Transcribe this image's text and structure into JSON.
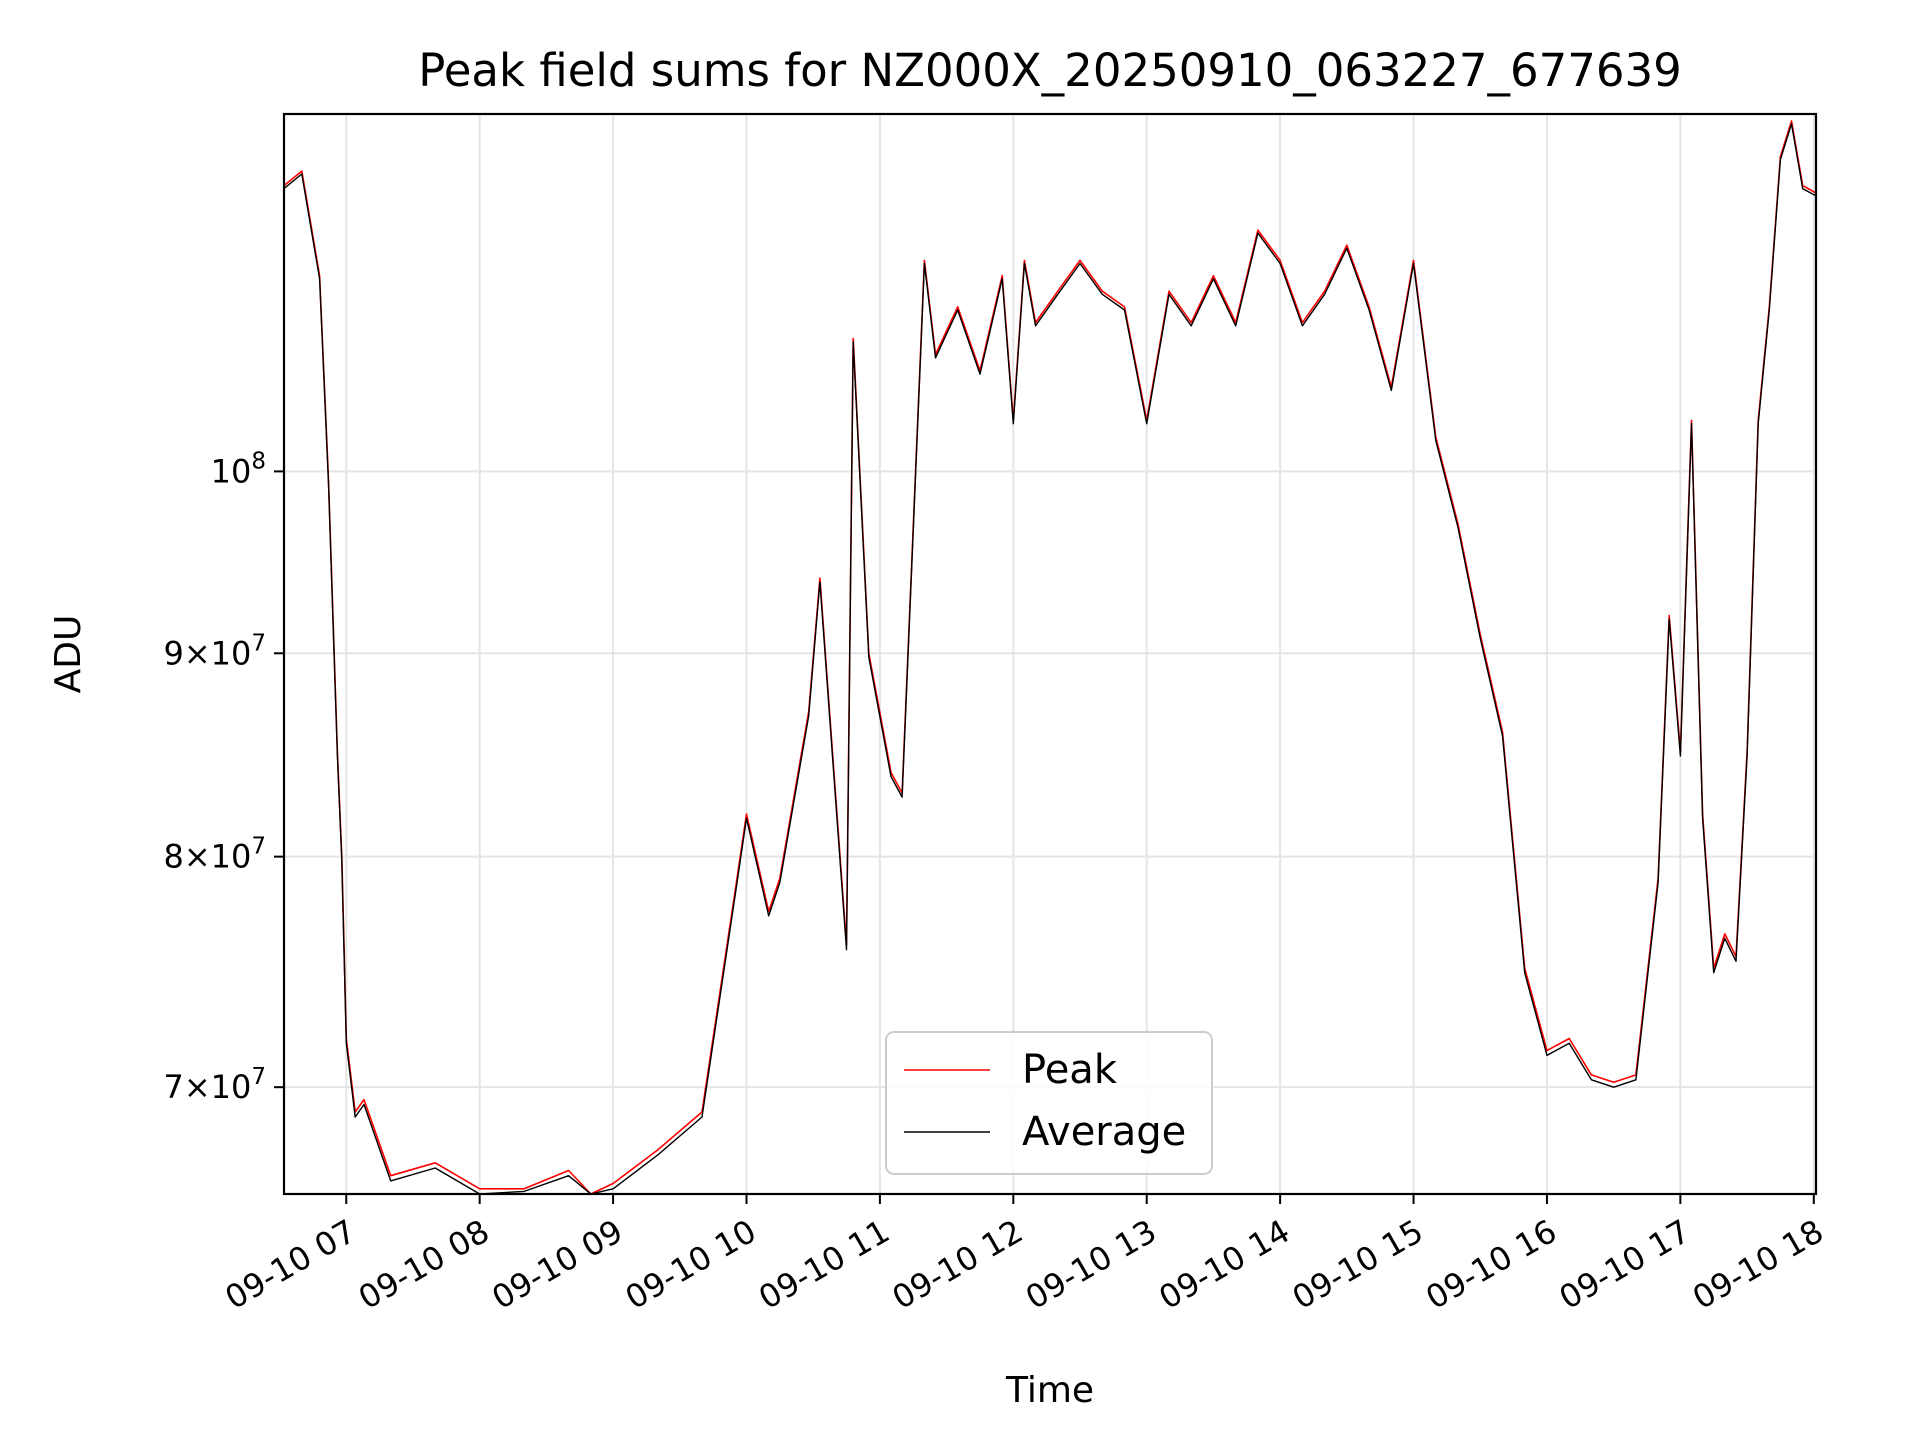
{
  "chart_data": {
    "type": "line",
    "title": "Peak field sums for NZ000X_20250910_063227_677639",
    "xlabel": "Time",
    "ylabel": "ADU",
    "y_scale": "log",
    "xlim": [
      "2025-09-10 06:32",
      "2025-09-10 18:01"
    ],
    "ylim": [
      65800000,
      123000000
    ],
    "grid": true,
    "legend_position": "lower-center",
    "x_tick_labels": [
      "09-10 07",
      "09-10 08",
      "09-10 09",
      "09-10 10",
      "09-10 11",
      "09-10 12",
      "09-10 13",
      "09-10 14",
      "09-10 15",
      "09-10 16",
      "09-10 17",
      "09-10 18"
    ],
    "y_ticks": [
      {
        "value": 70000000,
        "mantissa": "7",
        "times": "×",
        "base": "10",
        "exp": "7"
      },
      {
        "value": 80000000,
        "mantissa": "8",
        "times": "×",
        "base": "10",
        "exp": "7"
      },
      {
        "value": 90000000,
        "mantissa": "9",
        "times": "×",
        "base": "10",
        "exp": "7"
      },
      {
        "value": 100000000,
        "mantissa": "",
        "times": "",
        "base": "10",
        "exp": "8"
      }
    ],
    "x": [
      "06:32",
      "06:40",
      "06:48",
      "06:52",
      "06:56",
      "06:58",
      "07:00",
      "07:04",
      "07:08",
      "07:20",
      "07:40",
      "08:00",
      "08:20",
      "08:40",
      "08:50",
      "09:00",
      "09:20",
      "09:40",
      "09:55",
      "10:00",
      "10:10",
      "10:15",
      "10:20",
      "10:28",
      "10:33",
      "10:38",
      "10:45",
      "10:48",
      "10:55",
      "11:05",
      "11:10",
      "11:20",
      "11:25",
      "11:35",
      "11:45",
      "11:55",
      "12:00",
      "12:05",
      "12:10",
      "12:20",
      "12:30",
      "12:40",
      "12:50",
      "13:00",
      "13:10",
      "13:20",
      "13:30",
      "13:40",
      "13:50",
      "14:00",
      "14:10",
      "14:20",
      "14:30",
      "14:40",
      "14:50",
      "15:00",
      "15:10",
      "15:20",
      "15:30",
      "15:40",
      "15:50",
      "16:00",
      "16:10",
      "16:20",
      "16:30",
      "16:40",
      "16:50",
      "16:55",
      "17:00",
      "17:05",
      "17:10",
      "17:15",
      "17:20",
      "17:25",
      "17:30",
      "17:35",
      "17:40",
      "17:45",
      "17:50",
      "17:55",
      "18:01"
    ],
    "series": [
      {
        "name": "Peak",
        "color": "#ff0000",
        "values": [
          118000000,
          119000000,
          112000000,
          99500000,
          85000000,
          80000000,
          72000000,
          69000000,
          69500000,
          66500000,
          67000000,
          66000000,
          66000000,
          66700000,
          65800000,
          66200000,
          67500000,
          69000000,
          78500000,
          82000000,
          77500000,
          79000000,
          82000000,
          87000000,
          94000000,
          86000000,
          76000000,
          108000000,
          90000000,
          84000000,
          83000000,
          113000000,
          107000000,
          110000000,
          106000000,
          112000000,
          103000000,
          113000000,
          109000000,
          111000000,
          113000000,
          111000000,
          110000000,
          103000000,
          111000000,
          109000000,
          112000000,
          109000000,
          115000000,
          113000000,
          109000000,
          111000000,
          114000000,
          110000000,
          105000000,
          113000000,
          102000000,
          97000000,
          91000000,
          86000000,
          75000000,
          71500000,
          72000000,
          70500000,
          70200000,
          70500000,
          79000000,
          92000000,
          85000000,
          103000000,
          82000000,
          75000000,
          76500000,
          75500000,
          85000000,
          103000000,
          110000000,
          120000000,
          122500000,
          118000000,
          117500000
        ]
      },
      {
        "name": "Average",
        "color": "#000000",
        "values": [
          117800000,
          118800000,
          111800000,
          99300000,
          84800000,
          79800000,
          71800000,
          68800000,
          69300000,
          66300000,
          66800000,
          65800000,
          65900000,
          66500000,
          65700000,
          66000000,
          67300000,
          68800000,
          78300000,
          81800000,
          77300000,
          78800000,
          81800000,
          86800000,
          93800000,
          85800000,
          75800000,
          107800000,
          89800000,
          83800000,
          82800000,
          112800000,
          106800000,
          109800000,
          105800000,
          111800000,
          102800000,
          112800000,
          108800000,
          110800000,
          112800000,
          110800000,
          109800000,
          102800000,
          110800000,
          108800000,
          111800000,
          108800000,
          114800000,
          112800000,
          108800000,
          110800000,
          113800000,
          109800000,
          104800000,
          112800000,
          101800000,
          96800000,
          90800000,
          85800000,
          74800000,
          71300000,
          71800000,
          70300000,
          70000000,
          70300000,
          78800000,
          91800000,
          84800000,
          102800000,
          81800000,
          74800000,
          76300000,
          75300000,
          84800000,
          102800000,
          109800000,
          119800000,
          122300000,
          117800000,
          117300000
        ]
      }
    ]
  }
}
